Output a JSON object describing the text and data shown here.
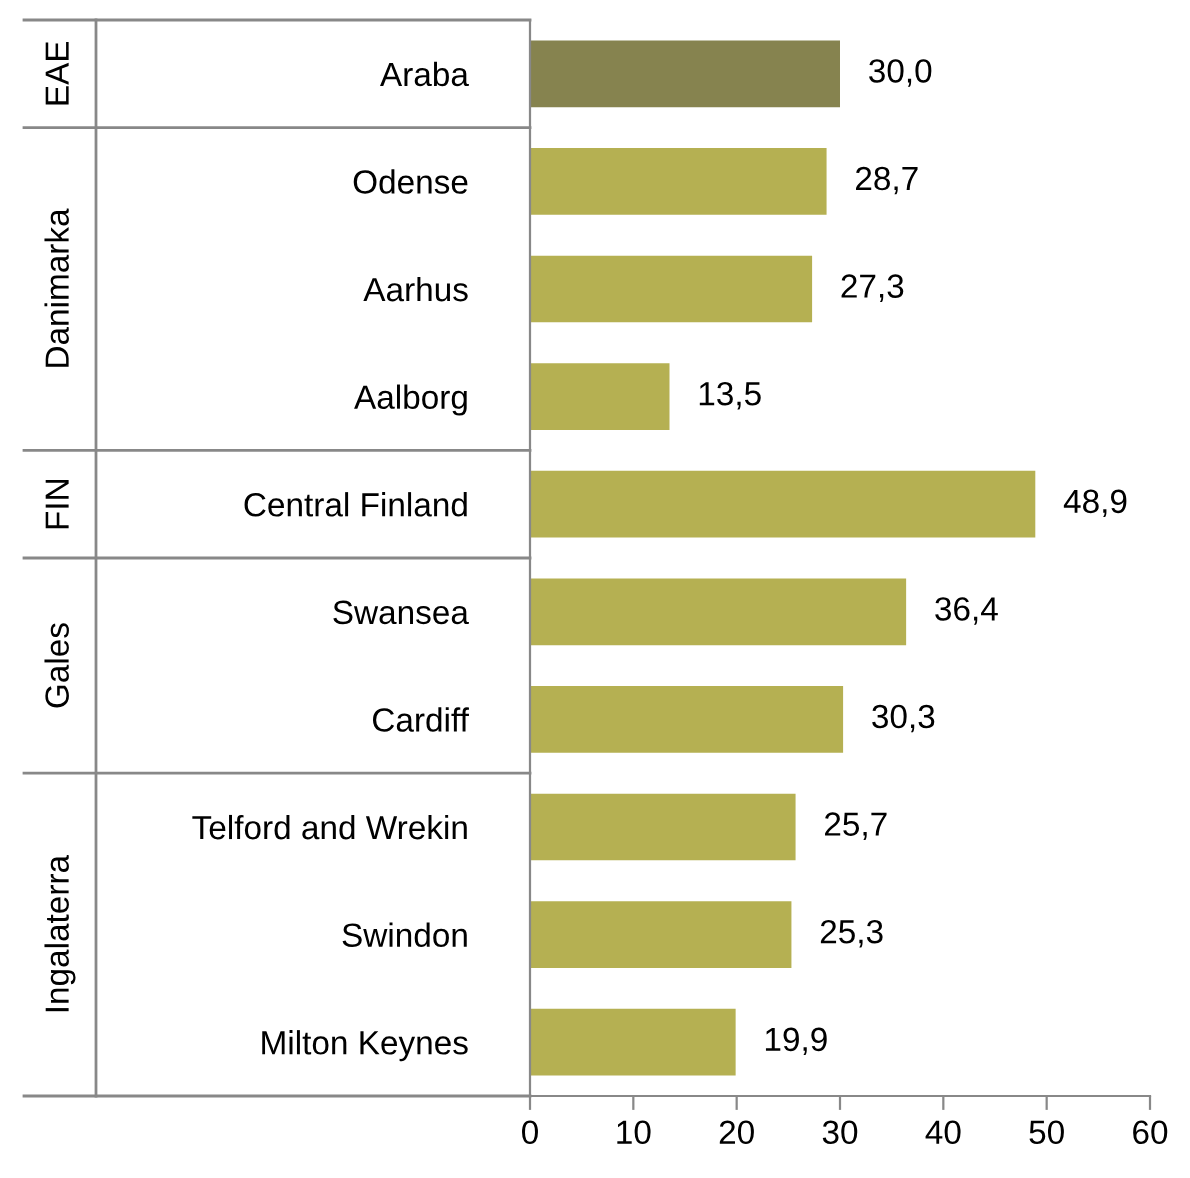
{
  "chart_data": {
    "type": "bar",
    "orientation": "horizontal",
    "categories": [
      "Araba",
      "Odense",
      "Aarhus",
      "Aalborg",
      "Central Finland",
      "Swansea",
      "Cardiff",
      "Telford and Wrekin",
      "Swindon",
      "Milton Keynes"
    ],
    "values": [
      30.0,
      28.7,
      27.3,
      13.5,
      48.9,
      36.4,
      30.3,
      25.7,
      25.3,
      19.9
    ],
    "colors": [
      "#86834f",
      "#b5b052",
      "#b5b052",
      "#b5b052",
      "#b5b052",
      "#b5b052",
      "#b5b052",
      "#b5b052",
      "#b5b052",
      "#b5b052"
    ],
    "value_labels": [
      "30,0",
      "28,7",
      "27,3",
      "13,5",
      "48,9",
      "36,4",
      "30,3",
      "25,7",
      "25,3",
      "19,9"
    ],
    "annotations": [
      "EAE",
      "Danimarka",
      "FIN",
      "Gales",
      "Ingalaterra"
    ],
    "xlim": [
      0,
      60
    ],
    "xticks": [
      0,
      10,
      20,
      30,
      40,
      50,
      60
    ],
    "grid": false
  }
}
